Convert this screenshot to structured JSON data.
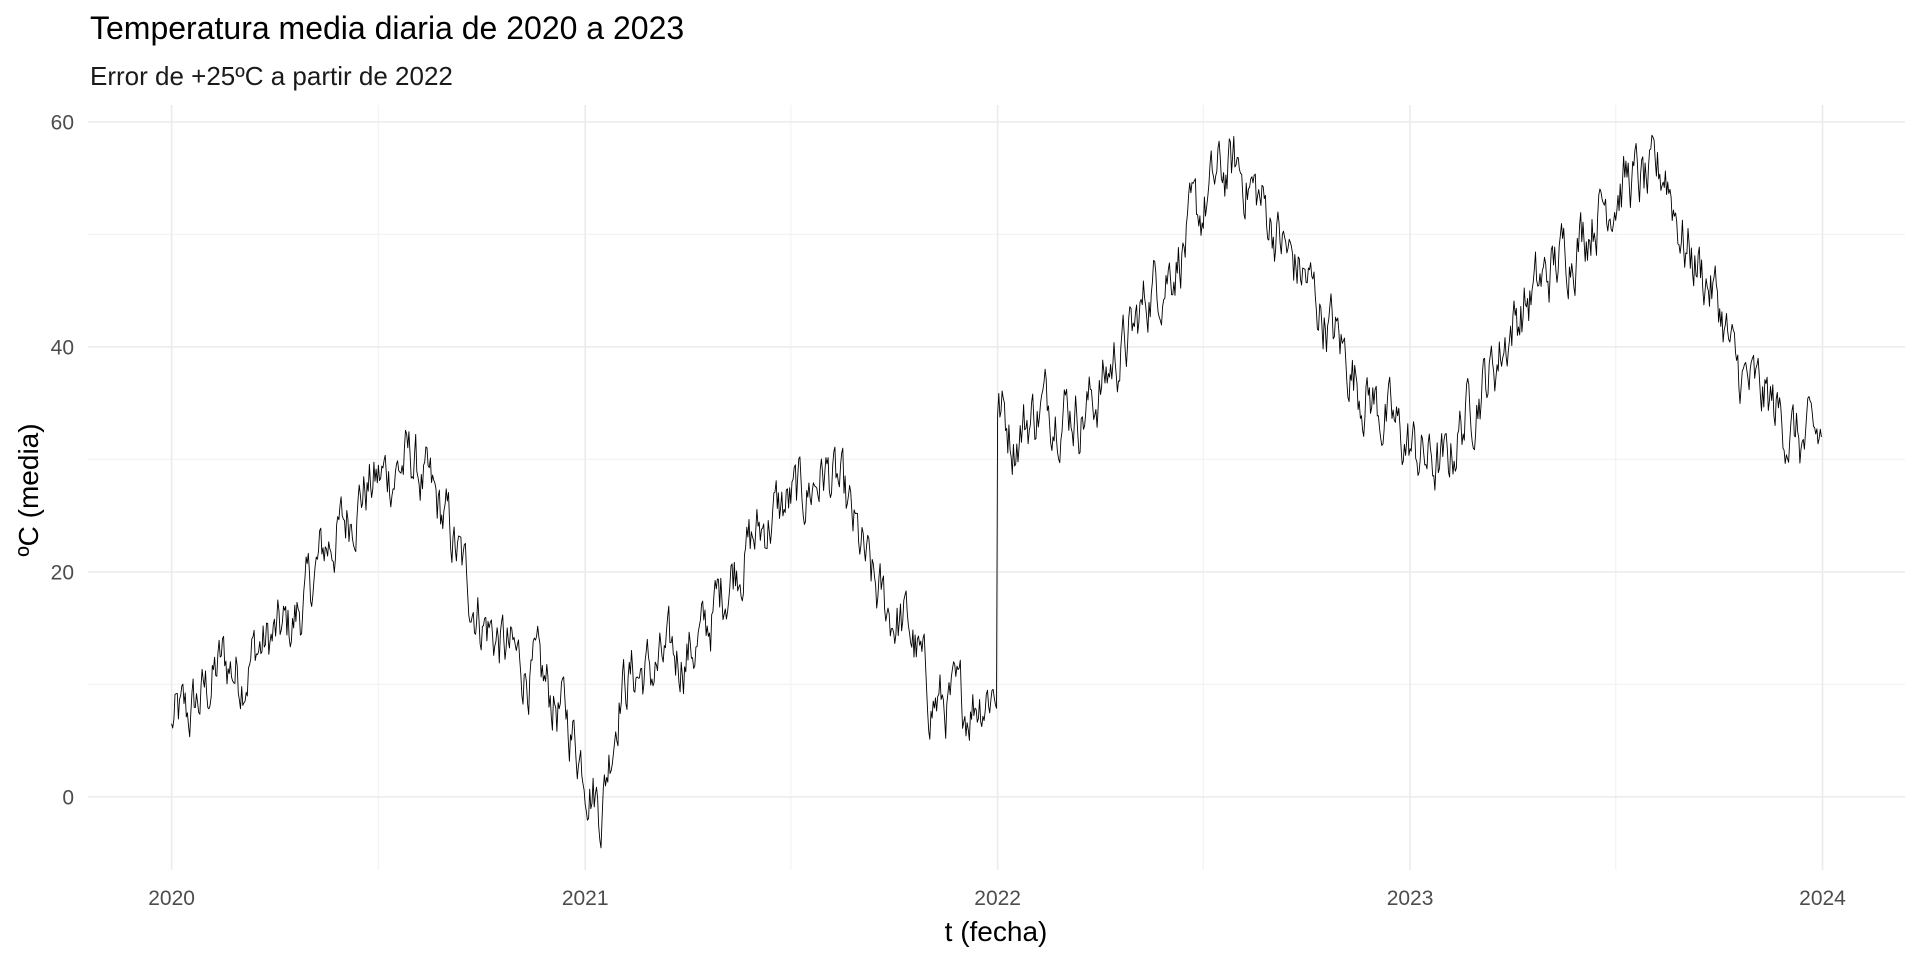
{
  "chart_data": {
    "type": "line",
    "title": "Temperatura media diaria de 2020 a 2023",
    "subtitle": "Error de +25ºC a partir de 2022",
    "xlabel": "t (fecha)",
    "ylabel": "ºC (media)",
    "x_ticks": [
      "2020",
      "2021",
      "2022",
      "2023",
      "2024"
    ],
    "y_ticks": [
      0,
      20,
      40,
      60
    ],
    "xlim": [
      "2019-10-19",
      "2024-03-14"
    ],
    "ylim": [
      -6.5,
      61.5
    ],
    "grid": true,
    "legend": "none",
    "line_color": "#000000",
    "series": [
      {
        "x": [
          "2020-01-01",
          "2020-01-15",
          "2020-02-01",
          "2020-02-15",
          "2020-03-01",
          "2020-03-15",
          "2020-04-01",
          "2020-04-15",
          "2020-05-01",
          "2020-05-15",
          "2020-06-01",
          "2020-06-15",
          "2020-07-01",
          "2020-07-15",
          "2020-08-01",
          "2020-08-15",
          "2020-09-01",
          "2020-09-15",
          "2020-10-01",
          "2020-10-15",
          "2020-11-01",
          "2020-11-15",
          "2020-12-01",
          "2020-12-15",
          "2021-01-01",
          "2021-01-15",
          "2021-02-01",
          "2021-02-15",
          "2021-03-01",
          "2021-03-15",
          "2021-04-01",
          "2021-04-15",
          "2021-05-01",
          "2021-05-15",
          "2021-06-01",
          "2021-06-15",
          "2021-07-01",
          "2021-07-15",
          "2021-08-01",
          "2021-08-15",
          "2021-09-01",
          "2021-09-15",
          "2021-10-01",
          "2021-10-15",
          "2021-11-01",
          "2021-11-15",
          "2021-12-01",
          "2021-12-15",
          "2021-12-31",
          "2022-01-01",
          "2022-01-15",
          "2022-02-01",
          "2022-02-15",
          "2022-03-01",
          "2022-03-15",
          "2022-04-01",
          "2022-04-15",
          "2022-05-01",
          "2022-05-15",
          "2022-06-01",
          "2022-06-15",
          "2022-07-01",
          "2022-07-15",
          "2022-08-01",
          "2022-08-15",
          "2022-09-01",
          "2022-09-15",
          "2022-10-01",
          "2022-10-15",
          "2022-11-01",
          "2022-11-15",
          "2022-12-01",
          "2022-12-15",
          "2023-01-01",
          "2023-01-15",
          "2023-02-01",
          "2023-02-15",
          "2023-03-01",
          "2023-03-15",
          "2023-04-01",
          "2023-04-15",
          "2023-05-01",
          "2023-05-15",
          "2023-06-01",
          "2023-06-15",
          "2023-07-01",
          "2023-07-15",
          "2023-08-01",
          "2023-08-15",
          "2023-09-01",
          "2023-09-15",
          "2023-10-01",
          "2023-10-15",
          "2023-11-01",
          "2023-11-15",
          "2023-12-01",
          "2023-12-15",
          "2023-12-31"
        ],
        "y": [
          6.5,
          7,
          9.5,
          12,
          11,
          13,
          14,
          15,
          18,
          22,
          24,
          27,
          28,
          29,
          30,
          27,
          24,
          20,
          16,
          14,
          12,
          11,
          9,
          7,
          3,
          -1,
          10,
          11,
          11,
          12,
          13,
          14,
          18,
          21,
          23,
          25,
          26,
          27,
          29,
          27,
          22,
          18,
          16,
          15,
          9,
          8,
          8,
          9,
          10,
          35,
          32,
          34,
          35,
          35,
          34,
          36,
          39,
          41,
          45,
          47,
          49,
          52,
          55,
          56,
          54,
          51,
          48,
          46,
          43,
          40,
          37,
          35,
          33,
          31,
          30,
          29,
          33,
          36,
          38,
          42,
          44,
          46,
          48,
          50,
          52,
          54,
          55,
          54,
          56,
          49,
          47,
          44,
          38,
          36,
          35,
          33,
          31,
          32
        ]
      }
    ]
  }
}
